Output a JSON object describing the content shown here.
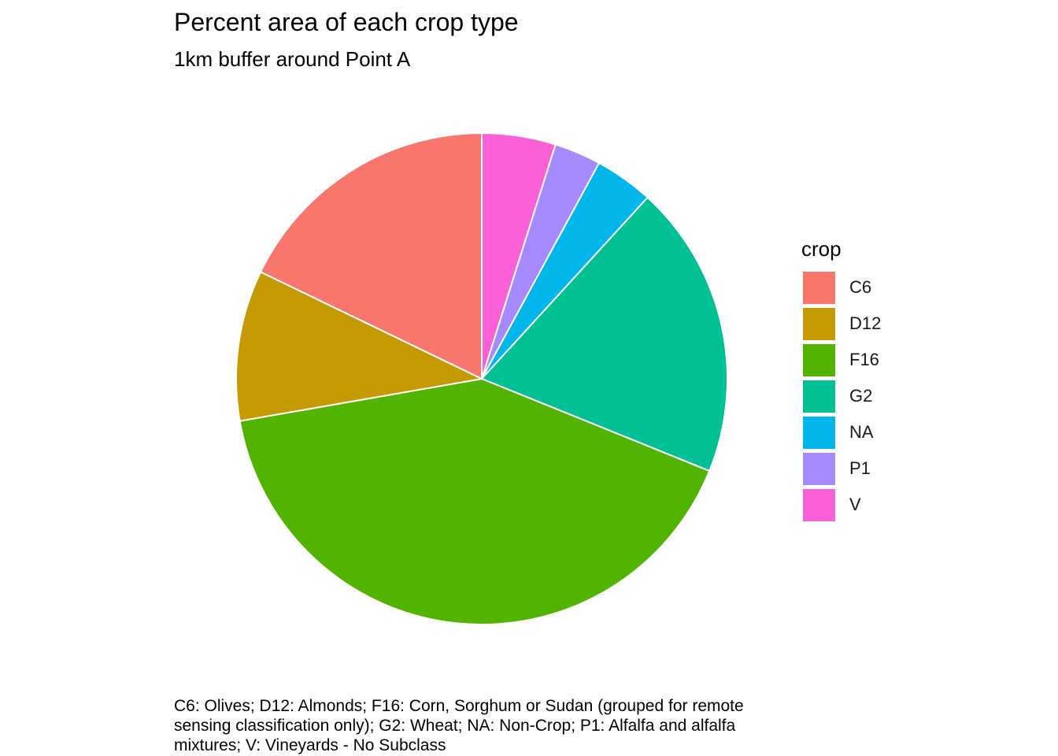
{
  "chart_data": {
    "type": "pie",
    "title": "Percent area of each crop type",
    "subtitle": "1km buffer around Point A",
    "legend_title": "crop",
    "legend_position": "right",
    "categories": [
      "C6",
      "D12",
      "F16",
      "G2",
      "NA",
      "P1",
      "V"
    ],
    "values": [
      18.0,
      10.0,
      41.5,
      19.5,
      3.9,
      3.1,
      4.9
    ],
    "colors": [
      "#F8766D",
      "#C49A00",
      "#53B400",
      "#00C094",
      "#00B6EB",
      "#A58AFF",
      "#FB61D7"
    ],
    "caption": "C6: Olives; D12: Almonds; F16: Corn, Sorghum or Sudan (grouped for remote sensing classification only); G2: Wheat; NA: Non-Crop; P1: Alfalfa and alfalfa mixtures; V: Vineyards - No Subclass"
  }
}
